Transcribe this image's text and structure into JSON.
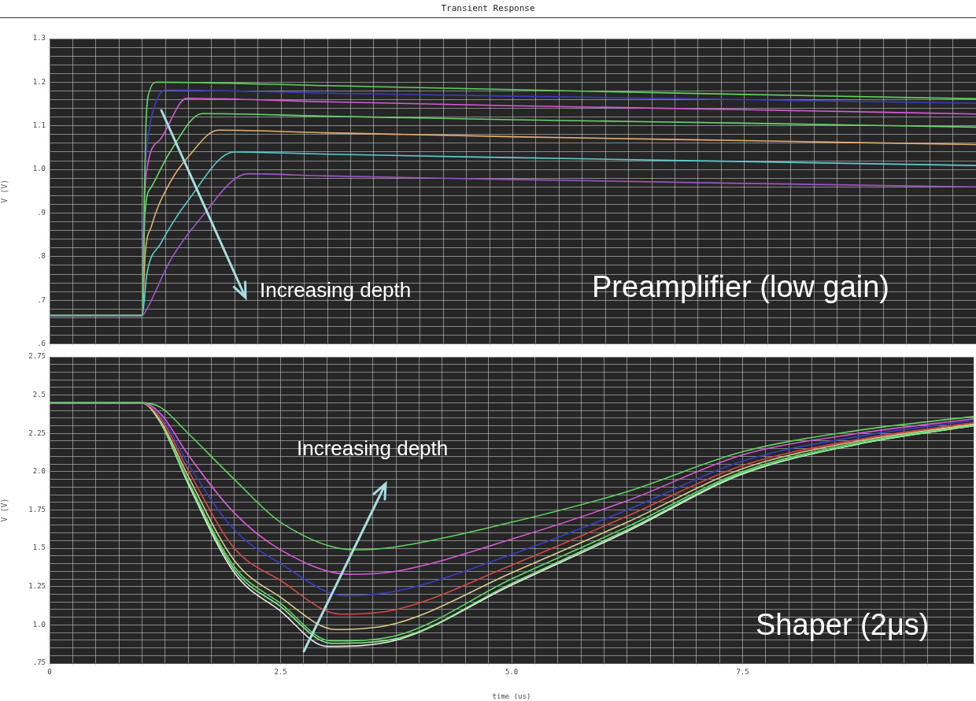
{
  "chart_data": [
    {
      "type": "line",
      "title": "Transient Response",
      "ylabel": "V (V)",
      "xlim": [
        0,
        10
      ],
      "xticks": [
        {
          "value": 0,
          "label": null
        },
        {
          "value": 0.25,
          "label": null
        },
        {
          "value": 0.5,
          "label": null
        },
        {
          "value": 0.75,
          "label": null
        },
        {
          "value": 1,
          "label": null
        },
        {
          "value": 1.25,
          "label": null
        },
        {
          "value": 1.5,
          "label": null
        },
        {
          "value": 1.75,
          "label": null
        },
        {
          "value": 2,
          "label": null
        },
        {
          "value": 2.25,
          "label": null
        },
        {
          "value": 2.5,
          "label": null
        },
        {
          "value": 2.75,
          "label": null
        },
        {
          "value": 3,
          "label": null
        },
        {
          "value": 3.25,
          "label": null
        },
        {
          "value": 3.5,
          "label": null
        },
        {
          "value": 3.75,
          "label": null
        },
        {
          "value": 4,
          "label": null
        },
        {
          "value": 4.25,
          "label": null
        },
        {
          "value": 4.5,
          "label": null
        },
        {
          "value": 4.75,
          "label": null
        },
        {
          "value": 5,
          "label": null
        },
        {
          "value": 5.25,
          "label": null
        },
        {
          "value": 5.5,
          "label": null
        },
        {
          "value": 5.75,
          "label": null
        },
        {
          "value": 6,
          "label": null
        },
        {
          "value": 6.25,
          "label": null
        },
        {
          "value": 6.5,
          "label": null
        },
        {
          "value": 6.75,
          "label": null
        },
        {
          "value": 7,
          "label": null
        },
        {
          "value": 7.25,
          "label": null
        },
        {
          "value": 7.5,
          "label": null
        },
        {
          "value": 7.75,
          "label": null
        },
        {
          "value": 8,
          "label": null
        },
        {
          "value": 8.25,
          "label": null
        },
        {
          "value": 8.5,
          "label": null
        },
        {
          "value": 8.75,
          "label": null
        },
        {
          "value": 9,
          "label": null
        },
        {
          "value": 9.25,
          "label": null
        },
        {
          "value": 9.5,
          "label": null
        },
        {
          "value": 9.75,
          "label": null
        },
        {
          "value": 10,
          "label": null
        }
      ],
      "ylim": [
        0.6,
        1.3
      ],
      "yticks": [
        {
          "value": 0.6,
          "label": ".6"
        },
        {
          "value": 0.62,
          "label": null
        },
        {
          "value": 0.64,
          "label": null
        },
        {
          "value": 0.66,
          "label": null
        },
        {
          "value": 0.68,
          "label": null
        },
        {
          "value": 0.7,
          "label": ".7"
        },
        {
          "value": 0.72,
          "label": null
        },
        {
          "value": 0.74,
          "label": null
        },
        {
          "value": 0.76,
          "label": null
        },
        {
          "value": 0.78,
          "label": null
        },
        {
          "value": 0.8,
          "label": ".8"
        },
        {
          "value": 0.82,
          "label": null
        },
        {
          "value": 0.84,
          "label": null
        },
        {
          "value": 0.86,
          "label": null
        },
        {
          "value": 0.88,
          "label": null
        },
        {
          "value": 0.9,
          "label": ".9"
        },
        {
          "value": 0.92,
          "label": null
        },
        {
          "value": 0.94,
          "label": null
        },
        {
          "value": 0.96,
          "label": null
        },
        {
          "value": 0.98,
          "label": null
        },
        {
          "value": 1.0,
          "label": "1.0"
        },
        {
          "value": 1.02,
          "label": null
        },
        {
          "value": 1.04,
          "label": null
        },
        {
          "value": 1.06,
          "label": null
        },
        {
          "value": 1.08,
          "label": null
        },
        {
          "value": 1.1,
          "label": "1.1"
        },
        {
          "value": 1.12,
          "label": null
        },
        {
          "value": 1.14,
          "label": null
        },
        {
          "value": 1.16,
          "label": null
        },
        {
          "value": 1.18,
          "label": null
        },
        {
          "value": 1.2,
          "label": "1.2"
        },
        {
          "value": 1.22,
          "label": null
        },
        {
          "value": 1.24,
          "label": null
        },
        {
          "value": 1.26,
          "label": null
        },
        {
          "value": 1.28,
          "label": null
        },
        {
          "value": 1.3,
          "label": "1.3"
        }
      ],
      "tick_labels": "y",
      "grid": true,
      "legend": false,
      "marker": "none",
      "line_style": "solid",
      "annotations": [
        "Increasing depth",
        "Preamplifier (low gain)"
      ],
      "series": [
        {
          "color": "#5fd35f",
          "x": [
            0,
            1.0,
            1.02,
            1.04,
            1.08,
            1.16,
            3,
            5,
            7.5,
            10
          ],
          "values": [
            0.665,
            0.665,
            0.9,
            1.1,
            1.18,
            1.2,
            1.192,
            1.183,
            1.172,
            1.162
          ]
        },
        {
          "color": "#3c3cc8",
          "x": [
            0,
            1.0,
            1.02,
            1.05,
            1.1,
            1.25,
            3,
            5,
            7.5,
            10
          ],
          "values": [
            0.665,
            0.665,
            0.95,
            1.05,
            1.12,
            1.182,
            1.175,
            1.168,
            1.16,
            1.152
          ]
        },
        {
          "color": "#d85ad8",
          "x": [
            0,
            1.0,
            1.02,
            1.05,
            1.2,
            1.48,
            3,
            5,
            7.5,
            10
          ],
          "values": [
            0.665,
            0.665,
            0.9,
            1.0,
            1.07,
            1.163,
            1.155,
            1.146,
            1.137,
            1.127
          ]
        },
        {
          "color": "#6cd46c",
          "x": [
            0,
            1.0,
            1.03,
            1.1,
            1.3,
            1.65,
            3,
            5,
            7.5,
            10
          ],
          "values": [
            0.665,
            0.665,
            0.9,
            0.96,
            1.04,
            1.128,
            1.122,
            1.114,
            1.106,
            1.097
          ]
        },
        {
          "color": "#e8b070",
          "x": [
            0,
            1.0,
            1.03,
            1.1,
            1.3,
            1.5,
            1.82,
            3,
            5,
            7.5,
            10
          ],
          "values": [
            0.665,
            0.665,
            0.8,
            0.87,
            0.97,
            1.03,
            1.09,
            1.084,
            1.075,
            1.066,
            1.057
          ]
        },
        {
          "color": "#5ccfcf",
          "x": [
            0,
            1.0,
            1.05,
            1.2,
            1.5,
            1.99,
            3,
            5,
            7.5,
            10
          ],
          "values": [
            0.665,
            0.665,
            0.76,
            0.83,
            0.93,
            1.04,
            1.035,
            1.027,
            1.018,
            1.009
          ]
        },
        {
          "color": "#a056c8",
          "x": [
            0,
            1.0,
            1.05,
            1.3,
            1.6,
            2.14,
            3,
            5,
            7.5,
            10
          ],
          "values": [
            0.665,
            0.665,
            0.68,
            0.79,
            0.88,
            0.99,
            0.985,
            0.977,
            0.968,
            0.96
          ]
        }
      ]
    },
    {
      "type": "line",
      "xlabel": "time (us)",
      "ylabel": "V (V)",
      "xlim": [
        0,
        10
      ],
      "xticks": [
        {
          "value": 0,
          "label": "0"
        },
        {
          "value": 0.25,
          "label": null
        },
        {
          "value": 0.5,
          "label": null
        },
        {
          "value": 0.75,
          "label": null
        },
        {
          "value": 1,
          "label": null
        },
        {
          "value": 1.25,
          "label": null
        },
        {
          "value": 1.5,
          "label": null
        },
        {
          "value": 1.75,
          "label": null
        },
        {
          "value": 2,
          "label": null
        },
        {
          "value": 2.25,
          "label": null
        },
        {
          "value": 2.5,
          "label": "2.5"
        },
        {
          "value": 2.75,
          "label": null
        },
        {
          "value": 3,
          "label": null
        },
        {
          "value": 3.25,
          "label": null
        },
        {
          "value": 3.5,
          "label": null
        },
        {
          "value": 3.75,
          "label": null
        },
        {
          "value": 4,
          "label": null
        },
        {
          "value": 4.25,
          "label": null
        },
        {
          "value": 4.5,
          "label": null
        },
        {
          "value": 4.75,
          "label": null
        },
        {
          "value": 5,
          "label": "5.0"
        },
        {
          "value": 5.25,
          "label": null
        },
        {
          "value": 5.5,
          "label": null
        },
        {
          "value": 5.75,
          "label": null
        },
        {
          "value": 6,
          "label": null
        },
        {
          "value": 6.25,
          "label": null
        },
        {
          "value": 6.5,
          "label": null
        },
        {
          "value": 6.75,
          "label": null
        },
        {
          "value": 7,
          "label": null
        },
        {
          "value": 7.25,
          "label": null
        },
        {
          "value": 7.5,
          "label": "7.5"
        },
        {
          "value": 7.75,
          "label": null
        },
        {
          "value": 8,
          "label": null
        },
        {
          "value": 8.25,
          "label": null
        },
        {
          "value": 8.5,
          "label": null
        },
        {
          "value": 8.75,
          "label": null
        },
        {
          "value": 9,
          "label": null
        },
        {
          "value": 9.25,
          "label": null
        },
        {
          "value": 9.5,
          "label": null
        },
        {
          "value": 9.75,
          "label": null
        },
        {
          "value": 10,
          "label": null
        }
      ],
      "ylim": [
        0.75,
        2.75
      ],
      "yticks": [
        {
          "value": 0.75,
          "label": ".75"
        },
        {
          "value": 0.8,
          "label": null
        },
        {
          "value": 0.85,
          "label": null
        },
        {
          "value": 0.9,
          "label": null
        },
        {
          "value": 0.95,
          "label": null
        },
        {
          "value": 1.0,
          "label": "1.0"
        },
        {
          "value": 1.05,
          "label": null
        },
        {
          "value": 1.1,
          "label": null
        },
        {
          "value": 1.15,
          "label": null
        },
        {
          "value": 1.2,
          "label": null
        },
        {
          "value": 1.25,
          "label": "1.25"
        },
        {
          "value": 1.3,
          "label": null
        },
        {
          "value": 1.35,
          "label": null
        },
        {
          "value": 1.4,
          "label": null
        },
        {
          "value": 1.45,
          "label": null
        },
        {
          "value": 1.5,
          "label": "1.5"
        },
        {
          "value": 1.55,
          "label": null
        },
        {
          "value": 1.6,
          "label": null
        },
        {
          "value": 1.65,
          "label": null
        },
        {
          "value": 1.7,
          "label": null
        },
        {
          "value": 1.75,
          "label": "1.75"
        },
        {
          "value": 1.8,
          "label": null
        },
        {
          "value": 1.85,
          "label": null
        },
        {
          "value": 1.9,
          "label": null
        },
        {
          "value": 1.95,
          "label": null
        },
        {
          "value": 2.0,
          "label": "2.0"
        },
        {
          "value": 2.05,
          "label": null
        },
        {
          "value": 2.1,
          "label": null
        },
        {
          "value": 2.15,
          "label": null
        },
        {
          "value": 2.2,
          "label": null
        },
        {
          "value": 2.25,
          "label": "2.25"
        },
        {
          "value": 2.3,
          "label": null
        },
        {
          "value": 2.35,
          "label": null
        },
        {
          "value": 2.4,
          "label": null
        },
        {
          "value": 2.45,
          "label": null
        },
        {
          "value": 2.5,
          "label": "2.5"
        },
        {
          "value": 2.55,
          "label": null
        },
        {
          "value": 2.6,
          "label": null
        },
        {
          "value": 2.65,
          "label": null
        },
        {
          "value": 2.7,
          "label": null
        },
        {
          "value": 2.75,
          "label": "2.75"
        }
      ],
      "grid": true,
      "legend": false,
      "marker": "none",
      "line_style": "solid",
      "annotations": [
        "Increasing depth",
        "Shaper (2μs)"
      ],
      "series": [
        {
          "color": "#5fd35f",
          "x": [
            0,
            1,
            1.2,
            1.5,
            2,
            2.5,
            3.3,
            3.75,
            5,
            6.25,
            7.5,
            8.75,
            10
          ],
          "values": [
            2.45,
            2.45,
            2.42,
            2.25,
            1.95,
            1.67,
            1.49,
            1.51,
            1.67,
            1.87,
            2.13,
            2.27,
            2.36
          ]
        },
        {
          "color": "#d85ad8",
          "x": [
            0,
            1,
            1.2,
            1.5,
            2,
            2.5,
            3.25,
            3.75,
            5,
            6.25,
            7.5,
            8.75,
            10
          ],
          "values": [
            2.45,
            2.45,
            2.38,
            2.11,
            1.73,
            1.49,
            1.33,
            1.35,
            1.56,
            1.81,
            2.11,
            2.25,
            2.345
          ]
        },
        {
          "color": "#3c3cc8",
          "x": [
            0,
            1,
            1.2,
            1.5,
            2,
            2.5,
            3.2,
            3.75,
            5,
            6.25,
            7.5,
            8.75,
            10
          ],
          "values": [
            2.45,
            2.45,
            2.37,
            2.05,
            1.62,
            1.4,
            1.19,
            1.22,
            1.46,
            1.75,
            2.07,
            2.23,
            2.335
          ]
        },
        {
          "color": "#d24848",
          "x": [
            0,
            1,
            1.2,
            1.5,
            2,
            2.5,
            3.15,
            3.75,
            5,
            6.25,
            7.5,
            8.75,
            10
          ],
          "values": [
            2.45,
            2.45,
            2.35,
            2.01,
            1.5,
            1.29,
            1.07,
            1.1,
            1.39,
            1.71,
            2.04,
            2.21,
            2.32
          ]
        },
        {
          "color": "#d8cc88",
          "x": [
            0,
            1,
            1.2,
            1.5,
            2,
            2.5,
            3.1,
            3.75,
            5,
            6.25,
            7.5,
            8.75,
            10
          ],
          "values": [
            2.45,
            2.45,
            2.33,
            1.97,
            1.42,
            1.18,
            0.97,
            1.01,
            1.34,
            1.67,
            2.02,
            2.2,
            2.31
          ]
        },
        {
          "color": "#5cd86c",
          "x": [
            0,
            1,
            1.2,
            1.5,
            2,
            2.5,
            3.05,
            3.75,
            5,
            6.25,
            7.5,
            8.75,
            10
          ],
          "values": [
            2.45,
            2.45,
            2.32,
            1.94,
            1.38,
            1.14,
            0.895,
            0.93,
            1.3,
            1.64,
            2.0,
            2.19,
            2.305
          ]
        },
        {
          "color": "#8ee88e",
          "x": [
            0,
            1,
            1.2,
            1.5,
            2,
            2.5,
            3.05,
            3.75,
            5,
            6.25,
            7.5,
            8.75,
            10
          ],
          "values": [
            2.45,
            2.45,
            2.32,
            1.93,
            1.36,
            1.12,
            0.88,
            0.91,
            1.27,
            1.62,
            1.99,
            2.18,
            2.3
          ]
        },
        {
          "color": "#e4f2e4",
          "x": [
            0,
            1,
            1.2,
            1.5,
            2,
            2.5,
            3.0,
            3.75,
            5,
            6.25,
            7.5,
            8.75,
            10
          ],
          "values": [
            2.45,
            2.45,
            2.32,
            1.92,
            1.34,
            1.09,
            0.86,
            0.9,
            1.26,
            1.61,
            1.985,
            2.18,
            2.3
          ]
        }
      ]
    }
  ]
}
